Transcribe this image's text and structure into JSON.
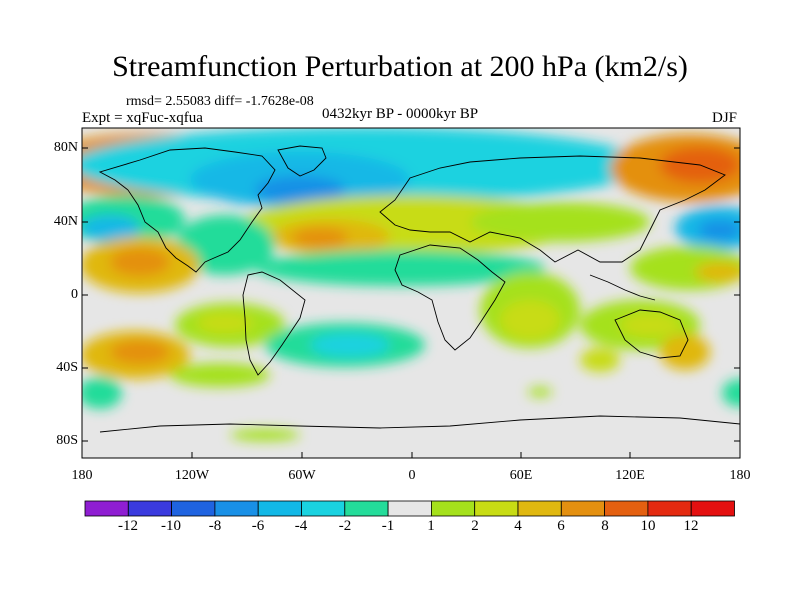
{
  "title": "Streamfunction Perturbation at 200 hPa (km2/s)",
  "stats": "rmsd= 2.55083 diff= -1.7628e-08",
  "experiment": "Expt = xqFuc-xqfua",
  "period": "0432kyr BP - 0000kyr BP",
  "season": "DJF",
  "map": {
    "lat_ticks": [
      "80N",
      "40N",
      "0",
      "40S",
      "80S"
    ],
    "lon_ticks": [
      "180",
      "120W",
      "60W",
      "0",
      "60E",
      "120E",
      "180"
    ],
    "background_color": "#e6e6e6"
  },
  "colorbar": {
    "labels": [
      "-12",
      "-10",
      "-8",
      "-6",
      "-4",
      "-2",
      "-1",
      "1",
      "2",
      "4",
      "6",
      "8",
      "10",
      "12"
    ],
    "colors": [
      "#8f1ed2",
      "#3a3ade",
      "#1f63e0",
      "#1990e6",
      "#12b8e6",
      "#1ad2e0",
      "#24dc9a",
      "#e6e6e6",
      "#a5e11c",
      "#c8dc14",
      "#e0b810",
      "#e49010",
      "#e46010",
      "#e42a10",
      "#e41010"
    ]
  }
}
